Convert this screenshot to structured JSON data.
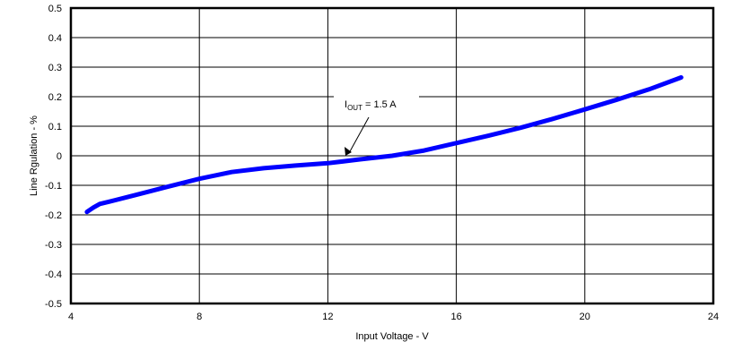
{
  "chart_data": {
    "type": "line",
    "title": "",
    "xlabel": "Input Voltage - V",
    "ylabel": "Line Rgulation - %",
    "xlim": [
      4,
      24
    ],
    "ylim": [
      -0.5,
      0.5
    ],
    "x_ticks": [
      4,
      8,
      12,
      16,
      20,
      24
    ],
    "x_tick_labels": [
      "4",
      "8",
      "12",
      "16",
      "20",
      "24"
    ],
    "y_ticks": [
      0.5,
      0.4,
      0.3,
      0.2,
      0.1,
      0,
      -0.1,
      -0.2,
      -0.3,
      -0.4,
      -0.5
    ],
    "y_tick_labels": [
      "0.5",
      "0.4",
      "0.3",
      "0.2",
      "0.1",
      "0",
      "-0.1",
      "-0.2",
      "-0.3",
      "-0.4",
      "-0.5"
    ],
    "grid": true,
    "legend": null,
    "series": [
      {
        "name": "IOUT = 1.5 A",
        "color": "#0000ff",
        "x": [
          4.5,
          4.7,
          4.9,
          5.2,
          6,
          7,
          8,
          9,
          10,
          11,
          12,
          13,
          14,
          15,
          16,
          17,
          18,
          19,
          20,
          21,
          22,
          23
        ],
        "y": [
          -0.19,
          -0.175,
          -0.163,
          -0.155,
          -0.133,
          -0.105,
          -0.078,
          -0.055,
          -0.042,
          -0.033,
          -0.025,
          -0.012,
          0.0,
          0.018,
          0.043,
          0.068,
          0.095,
          0.125,
          0.157,
          0.19,
          0.225,
          0.265
        ]
      }
    ],
    "annotations": [
      {
        "text_main": "I",
        "text_sub": "OUT",
        "text_rest": " = 1.5 A",
        "arrow_to": {
          "x": 12.6,
          "y": -0.005
        }
      }
    ]
  }
}
